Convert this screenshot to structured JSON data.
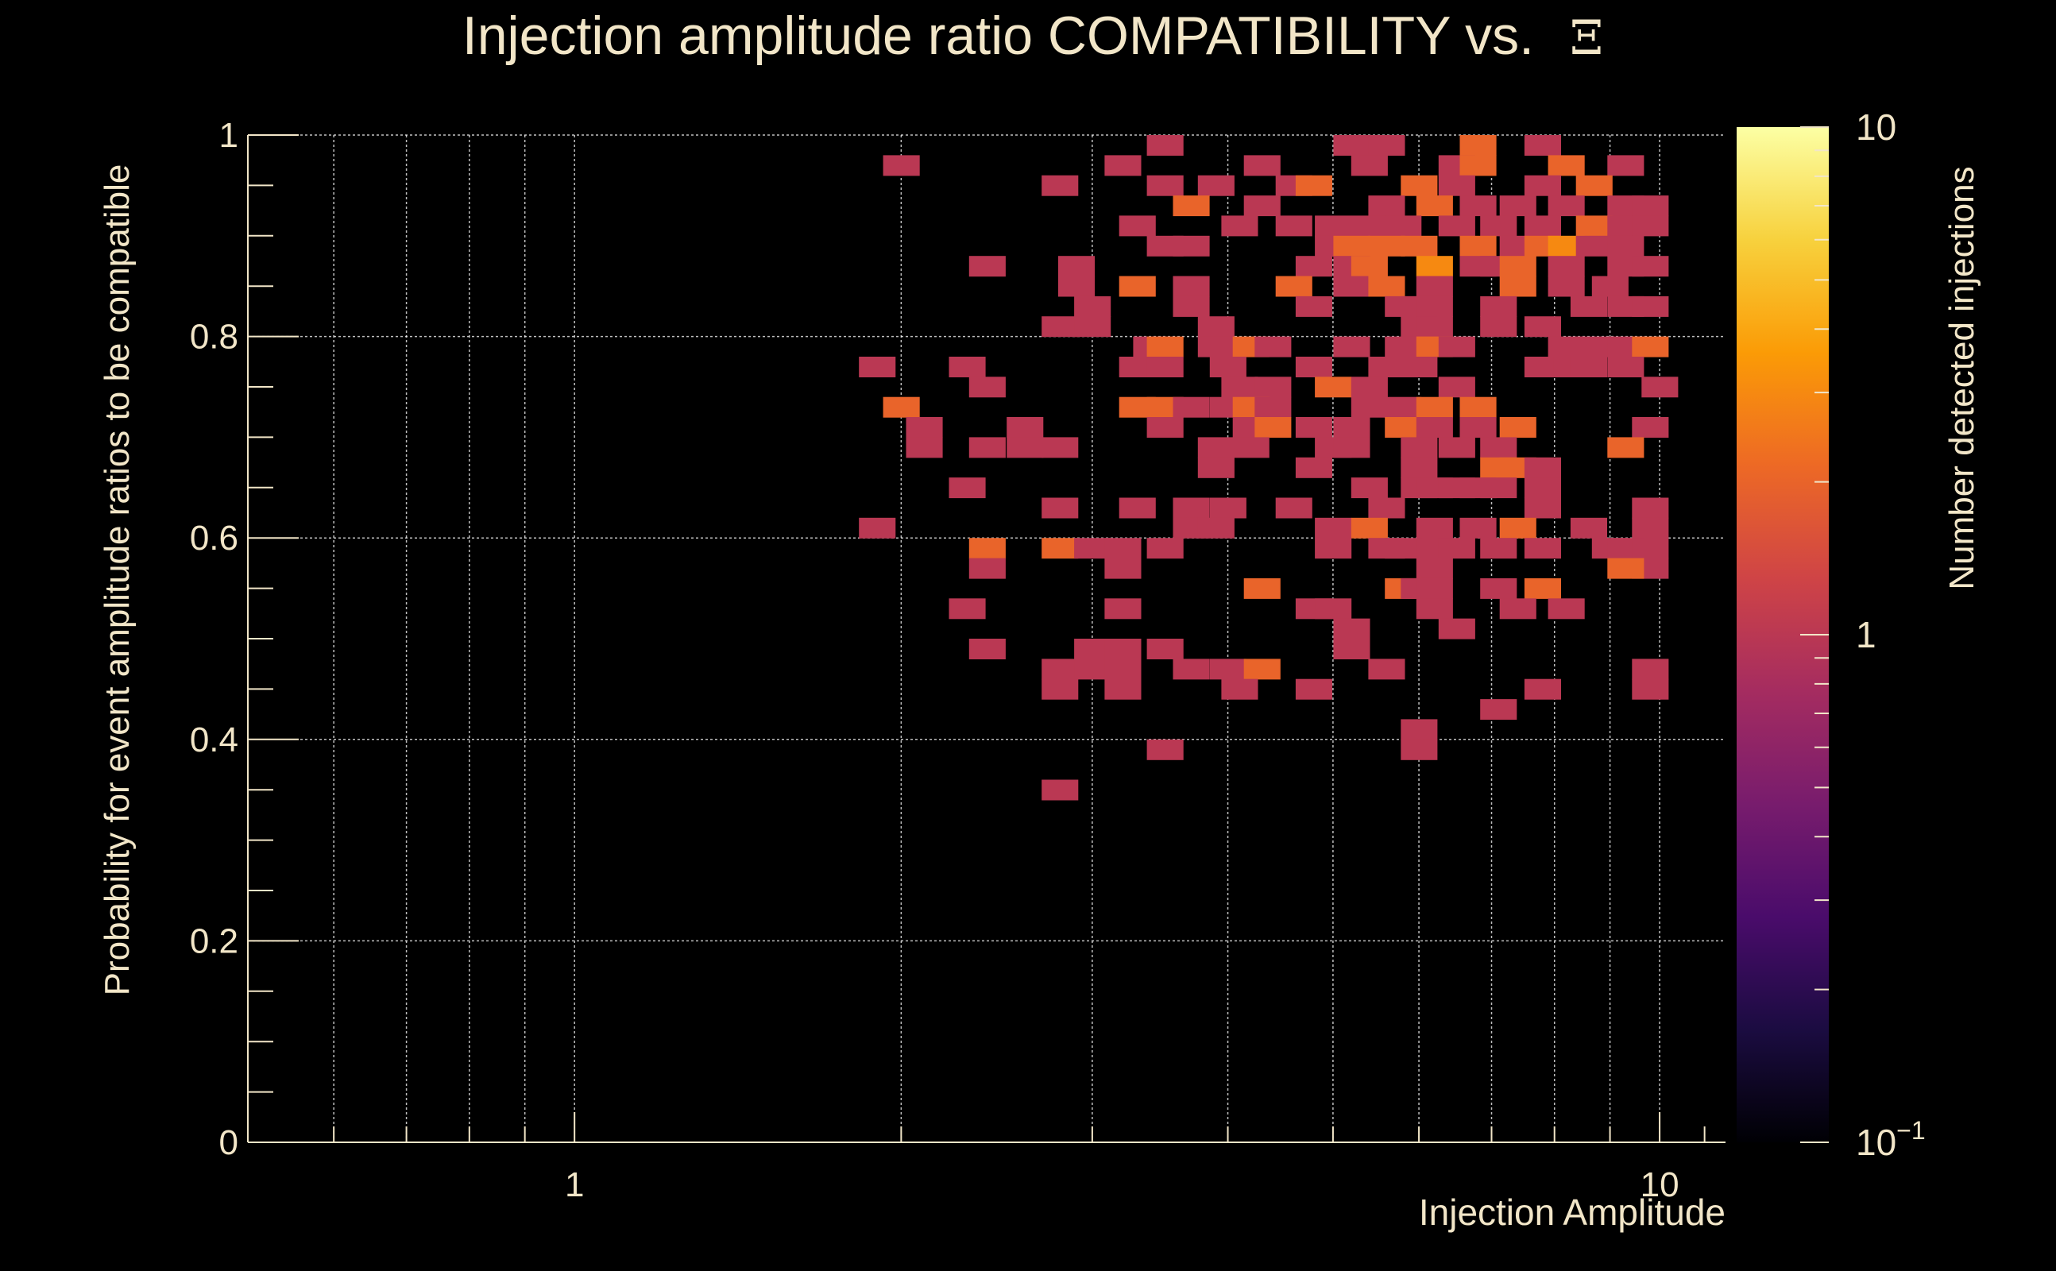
{
  "theme": {
    "background": "#000000",
    "foreground": "#f2e6c8",
    "grid": "#ffffff"
  },
  "chart_data": {
    "type": "heatmap",
    "title": "Injection amplitude ratio COMPATIBILITY vs.",
    "title_symbol": "Ξ",
    "xlabel": "Injection Amplitude",
    "ylabel": "Probability for event amplitude ratios to be compatible",
    "x_scale": "log",
    "xlim": [
      0.5,
      11.5
    ],
    "ylim": [
      0,
      1
    ],
    "x_ticks": [
      {
        "value": 1,
        "label": "1"
      },
      {
        "value": 10,
        "label": "10"
      }
    ],
    "y_ticks": [
      {
        "value": 0,
        "label": "0"
      },
      {
        "value": 0.2,
        "label": "0.2"
      },
      {
        "value": 0.4,
        "label": "0.4"
      },
      {
        "value": 0.6,
        "label": "0.6"
      },
      {
        "value": 0.8,
        "label": "0.8"
      },
      {
        "value": 1,
        "label": "1"
      }
    ],
    "y_bins": 50,
    "grid": true,
    "colorbar": {
      "label": "Number detected injections",
      "scale": "log",
      "range": [
        0.1,
        10
      ],
      "ticks": [
        {
          "value": 10,
          "label": "10"
        },
        {
          "value": 1,
          "label": "1"
        },
        {
          "value": 0.1,
          "label": "10",
          "exponent": "−1"
        }
      ],
      "colormap": [
        "#000004",
        "#1b0c41",
        "#4a0c6b",
        "#781c6d",
        "#a52c60",
        "#cf4446",
        "#ed6925",
        "#fb9b06",
        "#f7d13d",
        "#fcffa4"
      ]
    },
    "cells": [
      [
        3.5,
        49,
        1
      ],
      [
        5.2,
        49,
        1
      ],
      [
        5.6,
        49,
        1
      ],
      [
        6.8,
        49,
        2
      ],
      [
        7.8,
        49,
        1
      ],
      [
        2.0,
        48,
        1
      ],
      [
        3.2,
        48,
        1
      ],
      [
        4.3,
        48,
        1
      ],
      [
        5.4,
        48,
        1
      ],
      [
        6.5,
        48,
        1
      ],
      [
        6.8,
        48,
        2
      ],
      [
        8.2,
        48,
        2
      ],
      [
        9.3,
        48,
        1
      ],
      [
        2.8,
        47,
        1
      ],
      [
        3.5,
        47,
        1
      ],
      [
        3.9,
        47,
        1
      ],
      [
        4.6,
        47,
        1
      ],
      [
        4.8,
        47,
        2
      ],
      [
        6.0,
        47,
        2
      ],
      [
        6.5,
        47,
        1
      ],
      [
        7.8,
        47,
        1
      ],
      [
        8.7,
        47,
        2
      ],
      [
        3.7,
        46,
        2
      ],
      [
        4.3,
        46,
        1
      ],
      [
        5.6,
        46,
        1
      ],
      [
        6.2,
        46,
        2
      ],
      [
        6.8,
        46,
        1
      ],
      [
        7.4,
        46,
        1
      ],
      [
        8.2,
        46,
        1
      ],
      [
        9.3,
        46,
        1
      ],
      [
        9.8,
        46,
        1
      ],
      [
        3.3,
        45,
        1
      ],
      [
        4.1,
        45,
        1
      ],
      [
        4.6,
        45,
        1
      ],
      [
        5.0,
        45,
        1
      ],
      [
        5.4,
        45,
        1
      ],
      [
        5.8,
        45,
        1
      ],
      [
        6.5,
        45,
        1
      ],
      [
        7.1,
        45,
        1
      ],
      [
        7.8,
        45,
        1
      ],
      [
        8.7,
        45,
        2
      ],
      [
        9.3,
        45,
        1
      ],
      [
        9.8,
        45,
        1
      ],
      [
        3.5,
        44,
        1
      ],
      [
        3.7,
        44,
        1
      ],
      [
        5.0,
        44,
        1
      ],
      [
        5.2,
        44,
        2
      ],
      [
        5.6,
        44,
        2
      ],
      [
        6.0,
        44,
        2
      ],
      [
        6.8,
        44,
        2
      ],
      [
        7.4,
        44,
        1
      ],
      [
        7.8,
        44,
        2
      ],
      [
        8.2,
        44,
        3
      ],
      [
        8.7,
        44,
        1
      ],
      [
        9.3,
        44,
        1
      ],
      [
        2.4,
        43,
        1
      ],
      [
        2.9,
        43,
        1
      ],
      [
        4.8,
        43,
        1
      ],
      [
        5.2,
        43,
        1
      ],
      [
        5.4,
        43,
        2
      ],
      [
        6.2,
        43,
        3
      ],
      [
        6.8,
        43,
        1
      ],
      [
        7.1,
        43,
        1
      ],
      [
        7.4,
        43,
        2
      ],
      [
        8.2,
        43,
        1
      ],
      [
        9.3,
        43,
        1
      ],
      [
        9.8,
        43,
        1
      ],
      [
        2.9,
        42,
        1
      ],
      [
        3.3,
        42,
        2
      ],
      [
        3.7,
        42,
        1
      ],
      [
        4.6,
        42,
        2
      ],
      [
        5.2,
        42,
        1
      ],
      [
        5.6,
        42,
        2
      ],
      [
        6.2,
        42,
        1
      ],
      [
        7.4,
        42,
        2
      ],
      [
        8.2,
        42,
        1
      ],
      [
        9.0,
        42,
        1
      ],
      [
        3.0,
        41,
        1
      ],
      [
        3.7,
        41,
        1
      ],
      [
        4.8,
        41,
        1
      ],
      [
        5.8,
        41,
        1
      ],
      [
        6.0,
        41,
        1
      ],
      [
        6.2,
        41,
        1
      ],
      [
        7.1,
        41,
        1
      ],
      [
        8.6,
        41,
        1
      ],
      [
        9.3,
        41,
        1
      ],
      [
        9.8,
        41,
        1
      ],
      [
        2.8,
        40,
        1
      ],
      [
        3.0,
        40,
        1
      ],
      [
        3.9,
        40,
        1
      ],
      [
        6.0,
        40,
        1
      ],
      [
        6.2,
        40,
        1
      ],
      [
        7.1,
        40,
        1
      ],
      [
        7.8,
        40,
        1
      ],
      [
        3.4,
        39,
        1
      ],
      [
        3.5,
        39,
        2
      ],
      [
        3.9,
        39,
        1
      ],
      [
        4.2,
        39,
        2
      ],
      [
        4.4,
        39,
        1
      ],
      [
        5.2,
        39,
        1
      ],
      [
        5.8,
        39,
        1
      ],
      [
        6.2,
        39,
        2
      ],
      [
        6.5,
        39,
        1
      ],
      [
        8.2,
        39,
        1
      ],
      [
        8.7,
        39,
        1
      ],
      [
        9.3,
        39,
        1
      ],
      [
        9.8,
        39,
        2
      ],
      [
        1.9,
        38,
        1
      ],
      [
        2.3,
        38,
        1
      ],
      [
        3.3,
        38,
        1
      ],
      [
        3.5,
        38,
        1
      ],
      [
        4.0,
        38,
        1
      ],
      [
        4.8,
        38,
        1
      ],
      [
        5.6,
        38,
        1
      ],
      [
        6.0,
        38,
        1
      ],
      [
        7.8,
        38,
        1
      ],
      [
        8.3,
        38,
        1
      ],
      [
        8.6,
        38,
        1
      ],
      [
        9.3,
        38,
        1
      ],
      [
        2.4,
        37,
        1
      ],
      [
        4.1,
        37,
        1
      ],
      [
        4.4,
        37,
        1
      ],
      [
        5.0,
        37,
        2
      ],
      [
        5.4,
        37,
        1
      ],
      [
        6.5,
        37,
        1
      ],
      [
        10.0,
        37,
        1
      ],
      [
        2.0,
        36,
        2
      ],
      [
        3.3,
        36,
        2
      ],
      [
        3.5,
        36,
        2
      ],
      [
        3.7,
        36,
        1
      ],
      [
        4.0,
        36,
        1
      ],
      [
        4.2,
        36,
        2
      ],
      [
        4.4,
        36,
        1
      ],
      [
        5.4,
        36,
        1
      ],
      [
        5.8,
        36,
        1
      ],
      [
        6.2,
        36,
        2
      ],
      [
        6.8,
        36,
        2
      ],
      [
        2.1,
        35,
        1
      ],
      [
        2.6,
        35,
        1
      ],
      [
        3.5,
        35,
        1
      ],
      [
        4.2,
        35,
        1
      ],
      [
        4.4,
        35,
        2
      ],
      [
        4.8,
        35,
        1
      ],
      [
        5.2,
        35,
        1
      ],
      [
        5.8,
        35,
        2
      ],
      [
        6.2,
        35,
        1
      ],
      [
        6.8,
        35,
        1
      ],
      [
        7.4,
        35,
        2
      ],
      [
        9.8,
        35,
        1
      ],
      [
        2.1,
        34,
        1
      ],
      [
        2.4,
        34,
        1
      ],
      [
        2.6,
        34,
        1
      ],
      [
        2.8,
        34,
        1
      ],
      [
        3.9,
        34,
        1
      ],
      [
        4.2,
        34,
        1
      ],
      [
        5.0,
        34,
        1
      ],
      [
        5.2,
        34,
        1
      ],
      [
        6.0,
        34,
        1
      ],
      [
        6.5,
        34,
        1
      ],
      [
        7.1,
        34,
        1
      ],
      [
        9.3,
        34,
        2
      ],
      [
        3.9,
        33,
        1
      ],
      [
        4.8,
        33,
        1
      ],
      [
        6.0,
        33,
        1
      ],
      [
        7.1,
        33,
        2
      ],
      [
        7.4,
        33,
        2
      ],
      [
        7.8,
        33,
        1
      ],
      [
        2.3,
        32,
        1
      ],
      [
        5.4,
        32,
        1
      ],
      [
        6.0,
        32,
        1
      ],
      [
        6.2,
        32,
        1
      ],
      [
        6.5,
        32,
        1
      ],
      [
        6.8,
        32,
        1
      ],
      [
        7.1,
        32,
        1
      ],
      [
        7.8,
        32,
        1
      ],
      [
        2.8,
        31,
        1
      ],
      [
        3.3,
        31,
        1
      ],
      [
        3.7,
        31,
        1
      ],
      [
        4.0,
        31,
        1
      ],
      [
        4.6,
        31,
        1
      ],
      [
        5.6,
        31,
        1
      ],
      [
        7.8,
        31,
        1
      ],
      [
        9.8,
        31,
        1
      ],
      [
        1.9,
        30,
        1
      ],
      [
        3.7,
        30,
        1
      ],
      [
        3.9,
        30,
        1
      ],
      [
        5.0,
        30,
        1
      ],
      [
        5.4,
        30,
        2
      ],
      [
        6.2,
        30,
        1
      ],
      [
        6.8,
        30,
        1
      ],
      [
        7.4,
        30,
        2
      ],
      [
        8.6,
        30,
        1
      ],
      [
        9.8,
        30,
        1
      ],
      [
        2.4,
        29,
        2
      ],
      [
        2.8,
        29,
        2
      ],
      [
        3.0,
        29,
        1
      ],
      [
        3.2,
        29,
        1
      ],
      [
        3.5,
        29,
        1
      ],
      [
        5.0,
        29,
        1
      ],
      [
        5.6,
        29,
        1
      ],
      [
        5.8,
        29,
        1
      ],
      [
        6.2,
        29,
        1
      ],
      [
        6.5,
        29,
        1
      ],
      [
        7.1,
        29,
        1
      ],
      [
        7.8,
        29,
        1
      ],
      [
        9.0,
        29,
        1
      ],
      [
        9.3,
        29,
        1
      ],
      [
        9.8,
        29,
        1
      ],
      [
        2.4,
        28,
        1
      ],
      [
        3.2,
        28,
        1
      ],
      [
        6.2,
        28,
        1
      ],
      [
        9.8,
        28,
        1
      ],
      [
        9.3,
        28,
        2
      ],
      [
        4.3,
        27,
        2
      ],
      [
        5.8,
        27,
        2
      ],
      [
        6.0,
        27,
        1
      ],
      [
        6.2,
        27,
        1
      ],
      [
        7.1,
        27,
        1
      ],
      [
        7.8,
        27,
        2
      ],
      [
        2.3,
        26,
        1
      ],
      [
        3.2,
        26,
        1
      ],
      [
        4.8,
        26,
        1
      ],
      [
        5.0,
        26,
        1
      ],
      [
        6.2,
        26,
        1
      ],
      [
        7.4,
        26,
        1
      ],
      [
        8.2,
        26,
        1
      ],
      [
        5.2,
        25,
        1
      ],
      [
        6.5,
        25,
        1
      ],
      [
        2.4,
        24,
        1
      ],
      [
        3.0,
        24,
        1
      ],
      [
        3.2,
        24,
        1
      ],
      [
        3.5,
        24,
        1
      ],
      [
        5.2,
        24,
        1
      ],
      [
        2.8,
        23,
        1
      ],
      [
        3.0,
        23,
        1
      ],
      [
        3.2,
        23,
        1
      ],
      [
        3.7,
        23,
        1
      ],
      [
        4.0,
        23,
        1
      ],
      [
        4.3,
        23,
        2
      ],
      [
        5.6,
        23,
        1
      ],
      [
        9.8,
        23,
        1
      ],
      [
        2.8,
        22,
        1
      ],
      [
        3.2,
        22,
        1
      ],
      [
        4.1,
        22,
        1
      ],
      [
        4.8,
        22,
        1
      ],
      [
        7.8,
        22,
        1
      ],
      [
        9.8,
        22,
        1
      ],
      [
        7.1,
        21,
        1
      ],
      [
        6.0,
        20,
        1
      ],
      [
        3.5,
        19,
        1
      ],
      [
        6.0,
        19,
        1
      ],
      [
        2.8,
        17,
        1
      ]
    ]
  }
}
